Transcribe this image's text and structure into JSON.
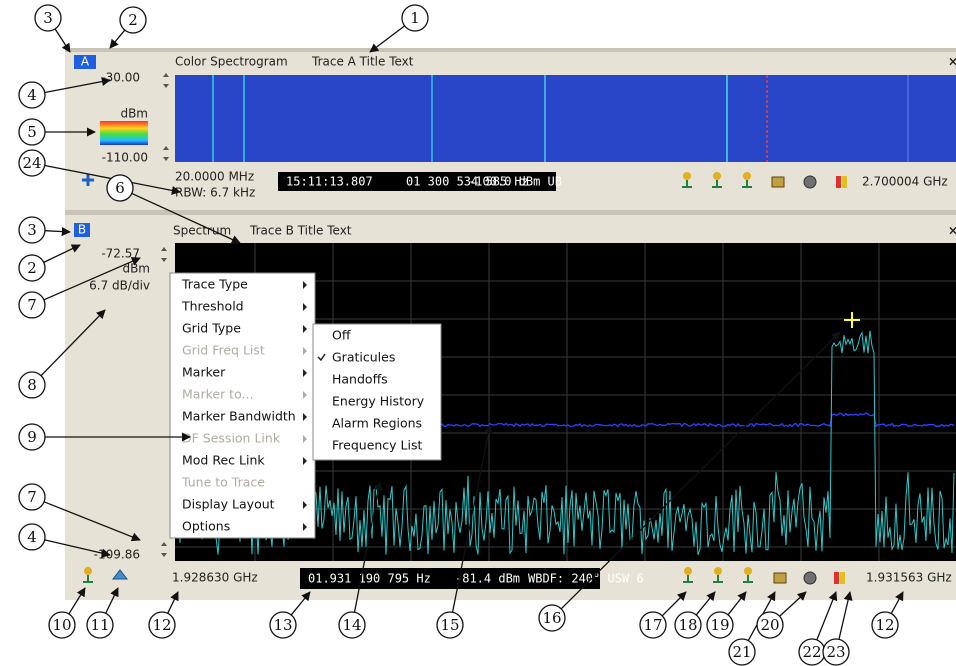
{
  "panel_a": {
    "id": "A",
    "view": "Color Spectrogram",
    "title": "Trace A Title Text",
    "ref_top": "-30.00",
    "unit": "dBm",
    "ref_bottom": "-110.00",
    "span": "20.0000 MHz",
    "rbw": "RBW: 6.7 kHz",
    "status": [
      "15:11:13.807",
      "01 300 534 585 Hz",
      "-100.0 dBm UB"
    ],
    "center": "2.700004 GHz"
  },
  "panel_b": {
    "id": "B",
    "view": "Spectrum",
    "title": "Trace B Title Text",
    "ref_top": "-72.57",
    "unit": "dBm",
    "scale": "6.7 dB/div",
    "ref_bottom": "-109.86",
    "start_freq": "1.928630 GHz",
    "status": [
      "01.931 190 795 Hz",
      "-81.4 dBm",
      "WBDF: 240° USW 6"
    ],
    "stop_freq": "1.931563 GHz"
  },
  "context_menu": {
    "items": [
      {
        "label": "Trace Type",
        "enabled": true,
        "submenu": true
      },
      {
        "label": "Threshold",
        "enabled": true,
        "submenu": true
      },
      {
        "label": "Grid Type",
        "enabled": true,
        "submenu": true
      },
      {
        "label": "Grid Freq List",
        "enabled": false,
        "submenu": true
      },
      {
        "label": "Marker",
        "enabled": true,
        "submenu": true
      },
      {
        "label": "Marker to...",
        "enabled": false,
        "submenu": true
      },
      {
        "label": "Marker Bandwidth",
        "enabled": true,
        "submenu": true
      },
      {
        "label": "DF Session Link",
        "enabled": false,
        "submenu": true
      },
      {
        "label": "Mod Rec Link",
        "enabled": true,
        "submenu": true
      },
      {
        "label": "Tune to Trace",
        "enabled": false,
        "submenu": false
      },
      {
        "label": "Display Layout",
        "enabled": true,
        "submenu": true
      },
      {
        "label": "Options",
        "enabled": true,
        "submenu": true
      }
    ]
  },
  "submenu": {
    "items": [
      {
        "label": "Off",
        "checked": false
      },
      {
        "label": "Graticules",
        "checked": true
      },
      {
        "label": "Handoffs",
        "checked": false
      },
      {
        "label": "Energy History",
        "checked": false
      },
      {
        "label": "Alarm Regions",
        "checked": false
      },
      {
        "label": "Frequency List",
        "checked": false
      }
    ]
  },
  "callouts": [
    "1",
    "2",
    "3",
    "4",
    "5",
    "24",
    "6",
    "3",
    "2",
    "7",
    "8",
    "9",
    "7",
    "4",
    "10",
    "11",
    "12",
    "13",
    "14",
    "15",
    "16",
    "17",
    "18",
    "19",
    "21",
    "20",
    "22",
    "23",
    "12"
  ]
}
